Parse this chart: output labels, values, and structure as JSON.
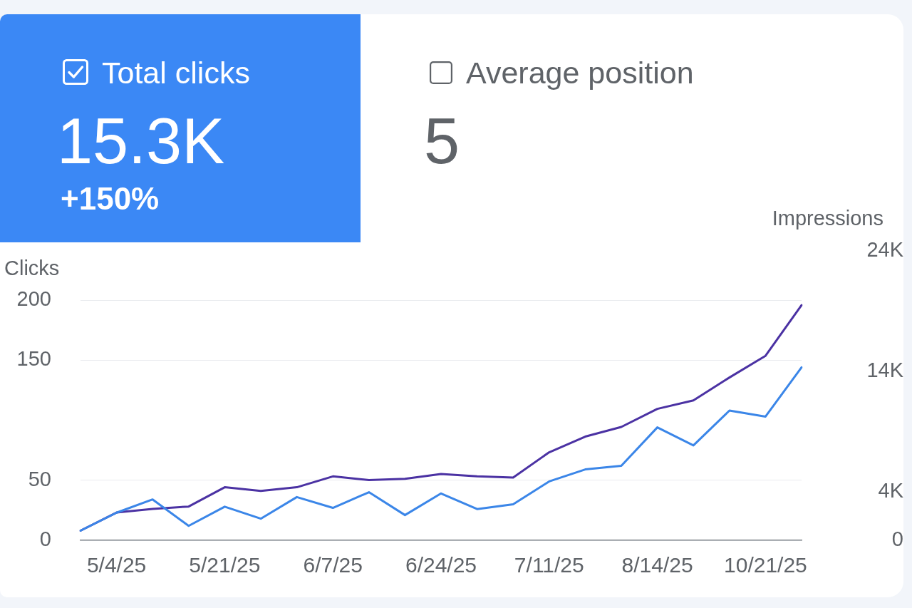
{
  "chart_data": [
    {
      "type": "other",
      "title": "Total clicks",
      "color": "#3b88f5",
      "annotations": [
        "15.3K",
        "+150%"
      ]
    },
    {
      "type": "other",
      "title": "Average position",
      "annotations": [
        "5"
      ]
    },
    {
      "type": "line",
      "ylabel": "Clicks",
      "y2label": "Impressions",
      "categories": [
        null,
        "5/4/25",
        null,
        null,
        "5/21/25",
        null,
        null,
        "6/7/25",
        null,
        null,
        "6/24/25",
        null,
        null,
        "7/11/25",
        null,
        null,
        "8/14/25",
        null,
        null,
        "10/21/25",
        null
      ],
      "series": [
        {
          "color": "#3b86e8",
          "values": [
            8,
            23,
            34,
            12,
            28,
            18,
            36,
            27,
            40,
            21,
            39,
            26,
            30,
            49,
            59,
            62,
            94,
            79,
            108,
            103,
            144
          ]
        },
        {
          "color": "#4b32a3",
          "axis": "y2",
          "values": [
            800,
            2300,
            2600,
            2800,
            4400,
            4100,
            4400,
            5300,
            5000,
            5100,
            5500,
            5300,
            5200,
            7300,
            8600,
            9400,
            10900,
            11600,
            13500,
            15300,
            19500
          ]
        }
      ],
      "ylim": [
        0,
        200
      ],
      "yticks": [
        0,
        50,
        150,
        200
      ],
      "y2lim": [
        0,
        24000
      ],
      "y2ticks": [
        0,
        {
          "value": 4000,
          "label": "4K"
        },
        {
          "value": 14000,
          "label": "14K"
        },
        {
          "value": 24000,
          "label": "24K"
        }
      ],
      "grid": "y",
      "marker": "none"
    }
  ]
}
